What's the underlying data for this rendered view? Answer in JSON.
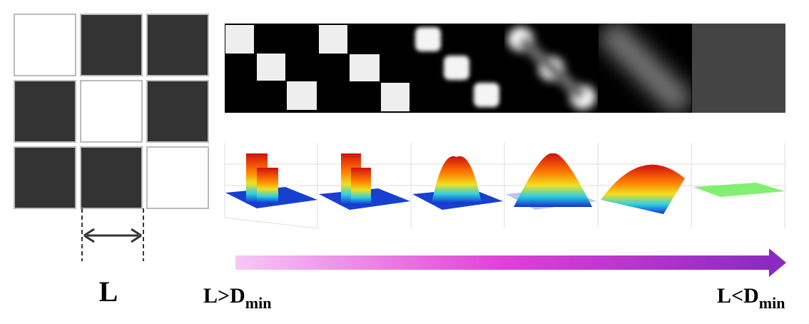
{
  "left_label": "L",
  "range": {
    "start": {
      "main": "L>D",
      "sub": "min"
    },
    "end": {
      "main": "L<D",
      "sub": "min"
    }
  }
}
